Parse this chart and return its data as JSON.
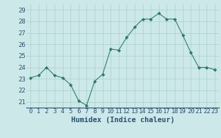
{
  "x": [
    0,
    1,
    2,
    3,
    4,
    5,
    6,
    7,
    8,
    9,
    10,
    11,
    12,
    13,
    14,
    15,
    16,
    17,
    18,
    19,
    20,
    21,
    22,
    23
  ],
  "y": [
    23.1,
    23.3,
    24.0,
    23.3,
    23.1,
    22.5,
    21.1,
    20.7,
    22.8,
    23.4,
    25.6,
    25.5,
    26.6,
    27.5,
    28.2,
    28.2,
    28.7,
    28.2,
    28.2,
    26.8,
    25.3,
    24.0,
    24.0,
    23.8
  ],
  "xlabel": "Humidex (Indice chaleur)",
  "xlim": [
    -0.5,
    23.5
  ],
  "ylim": [
    20.5,
    29.5
  ],
  "yticks": [
    21,
    22,
    23,
    24,
    25,
    26,
    27,
    28,
    29
  ],
  "xticks": [
    0,
    1,
    2,
    3,
    4,
    5,
    6,
    7,
    8,
    9,
    10,
    11,
    12,
    13,
    14,
    15,
    16,
    17,
    18,
    19,
    20,
    21,
    22,
    23
  ],
  "line_color": "#2d7a6a",
  "marker": "D",
  "marker_size": 2.2,
  "bg_color": "#cce8e8",
  "grid_color": "#aacece",
  "tick_color": "#2a5070",
  "xlabel_color": "#2a5070",
  "xlabel_fontsize": 7.5,
  "tick_fontsize": 6.5
}
